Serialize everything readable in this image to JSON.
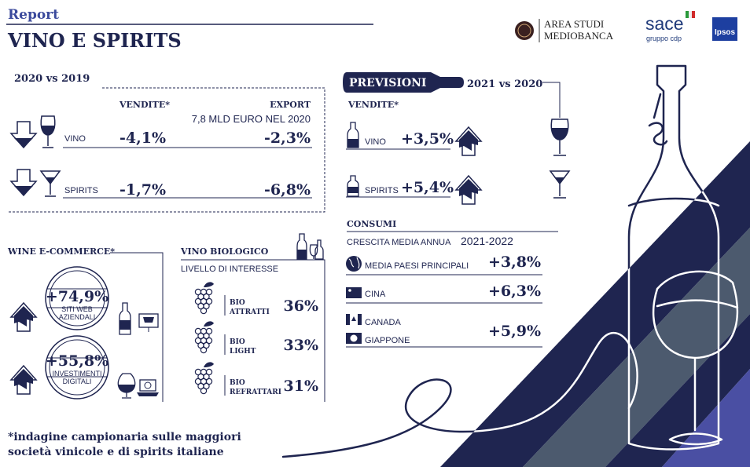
{
  "header": {
    "kicker": "Report",
    "title": "VINO E SPIRITS"
  },
  "logos": {
    "mediobanca": [
      "AREA STUDI",
      "MEDIOBANCA"
    ],
    "sace": "sace",
    "sace_sub": "gruppo cdp",
    "ipsos": "Ipsos"
  },
  "past": {
    "title": "2020 vs 2019",
    "sales_header": "VENDITE*",
    "export_header": "EXPORT",
    "export_note": "7,8 MLD EURO NEL 2020",
    "rows": [
      {
        "label": "VINO",
        "sales": "-4,1%",
        "export": "-2,3%"
      },
      {
        "label": "SPIRITS",
        "sales": "-1,7%",
        "export": "-6,8%"
      }
    ]
  },
  "forecast": {
    "badge": "PREVISIONI",
    "period": "2021 vs 2020",
    "sales_header": "VENDITE*",
    "rows": [
      {
        "label": "VINO",
        "value": "+3,5%"
      },
      {
        "label": "SPIRITS",
        "value": "+5,4%"
      }
    ]
  },
  "consumption": {
    "title": "CONSUMI",
    "subtitle": "CRESCITA MEDIA ANNUA",
    "period": "2021-2022",
    "rows": [
      {
        "labels": [
          "MEDIA PAESI PRINCIPALI"
        ],
        "value": "+3,8%"
      },
      {
        "labels": [
          "CINA"
        ],
        "value": "+6,3%"
      },
      {
        "labels": [
          "CANADA",
          "GIAPPONE"
        ],
        "value": "+5,9%"
      }
    ]
  },
  "ecommerce": {
    "title": "WINE E-COMMERCE*",
    "items": [
      {
        "value": "+74,9%",
        "label": [
          "SITI WEB",
          "AZIENDALI"
        ]
      },
      {
        "value": "+55,8%",
        "label": [
          "INVESTIMENTI",
          "DIGITALI"
        ]
      }
    ]
  },
  "organic": {
    "title": "VINO BIOLOGICO",
    "subtitle": "LIVELLO DI INTERESSE",
    "rows": [
      {
        "label": [
          "BIO",
          "ATTRATTI"
        ],
        "value": "36%"
      },
      {
        "label": [
          "BIO",
          "LIGHT"
        ],
        "value": "33%"
      },
      {
        "label": [
          "BIO",
          "REFRATTARI"
        ],
        "value": "31%"
      }
    ]
  },
  "footnote": [
    "*indagine campionaria sulle maggiori",
    "società vinicole e di spirits italiane"
  ]
}
